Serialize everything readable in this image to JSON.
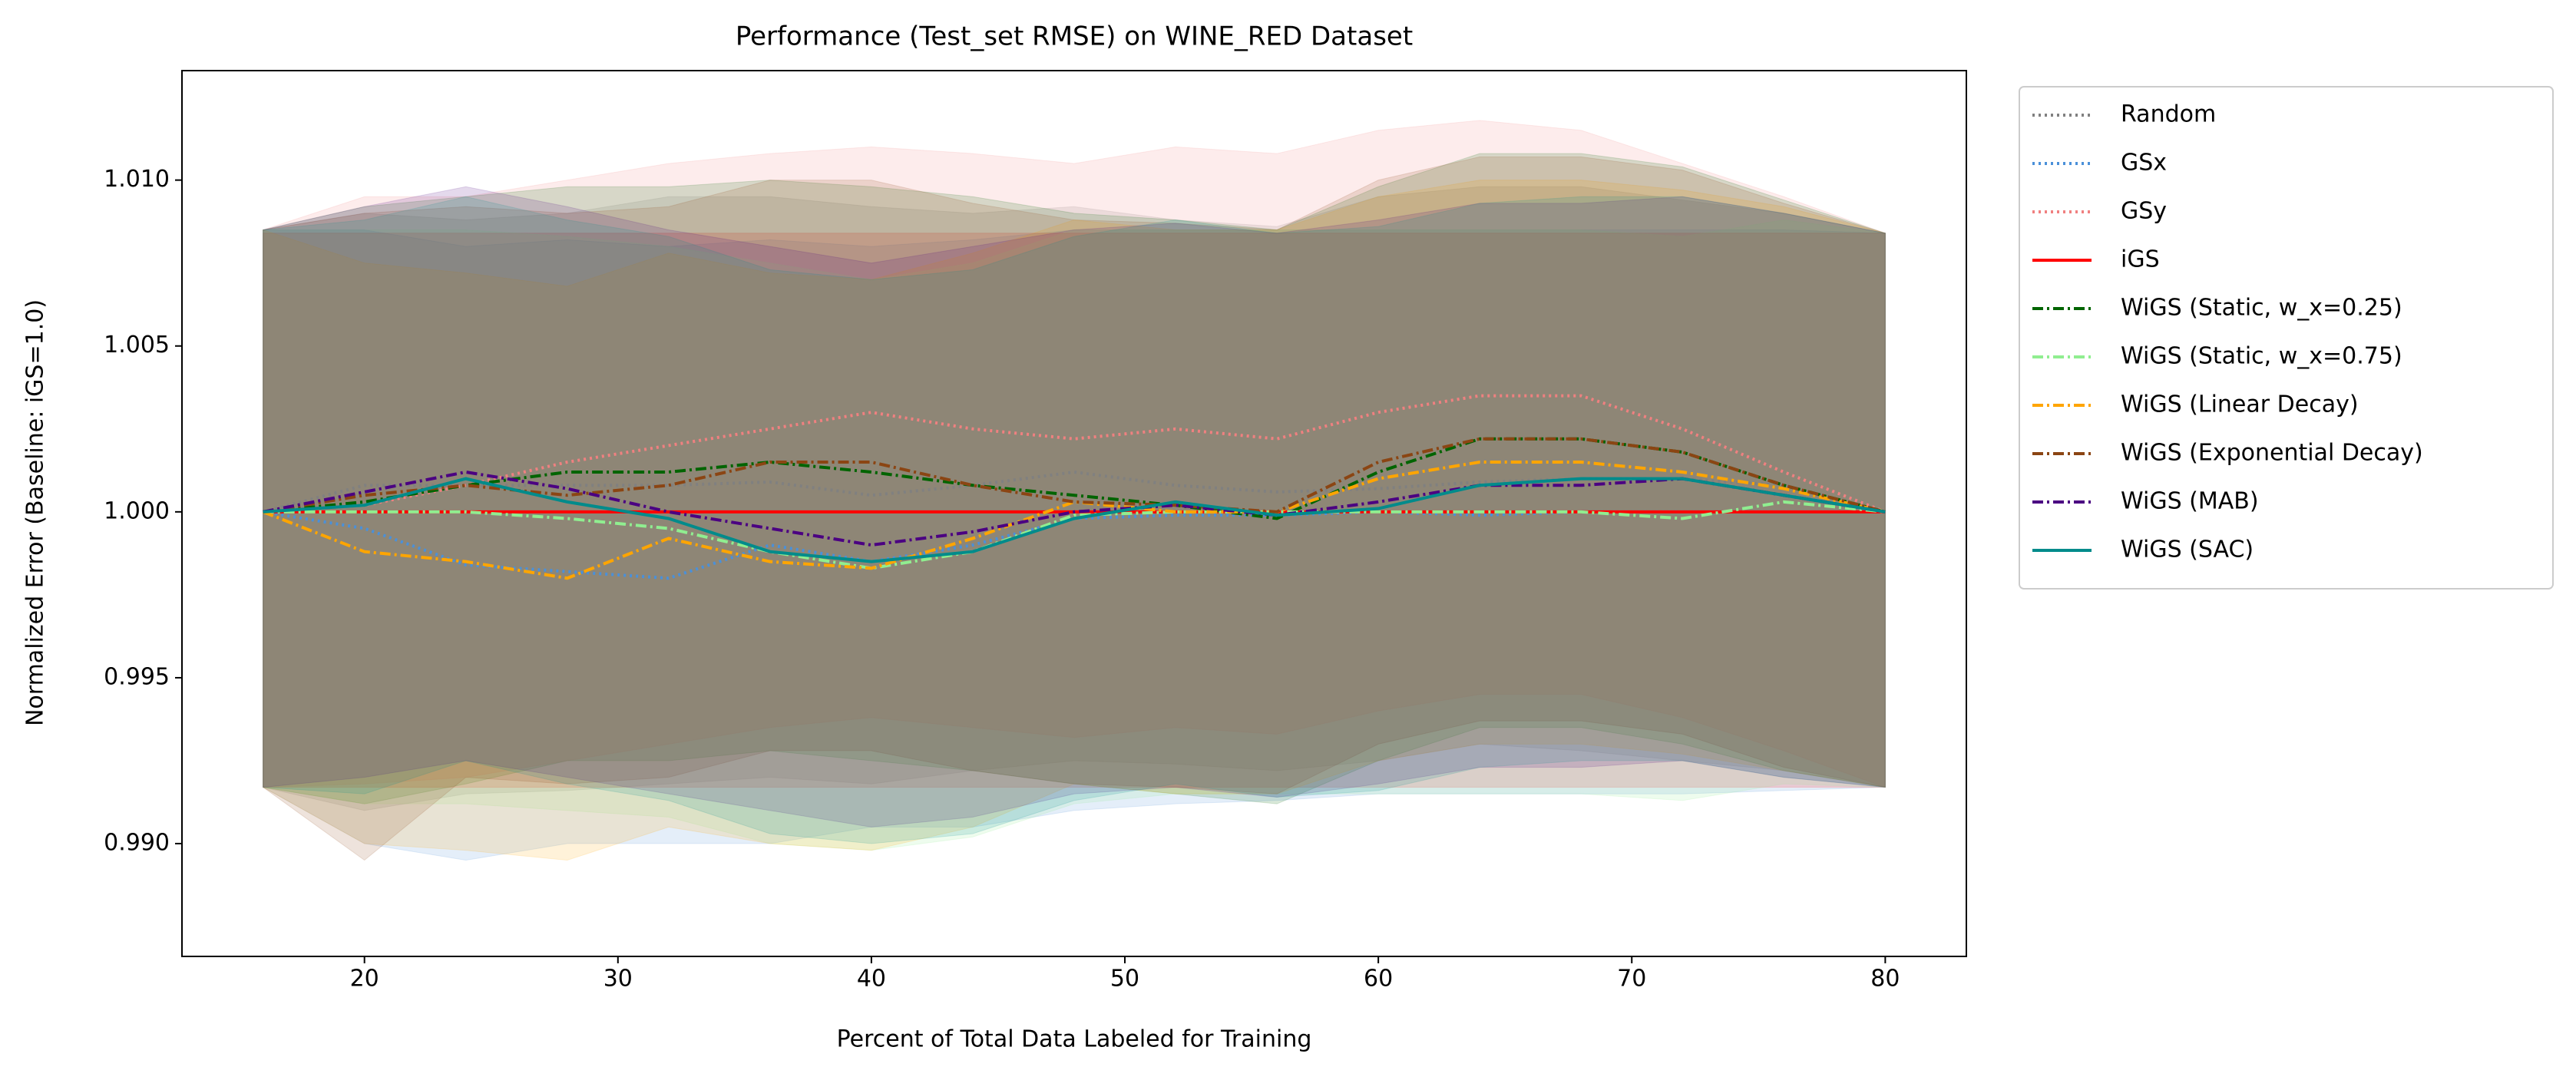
{
  "chart_data": {
    "type": "line",
    "title": "Performance (Test_set RMSE) on WINE_RED Dataset",
    "x_label": "Percent of Total Data Labeled for Training",
    "y_label": "Normalized Error (Baseline: iGS=1.0)",
    "x": [
      16,
      20,
      24,
      28,
      32,
      36,
      40,
      44,
      48,
      52,
      56,
      60,
      64,
      68,
      72,
      76,
      80
    ],
    "xlim": [
      12.8,
      83.2
    ],
    "xticks": [
      20,
      30,
      40,
      50,
      60,
      70,
      80
    ],
    "ylim": [
      0.9866,
      1.0133
    ],
    "yticks": [
      {
        "value": 0.99,
        "label": "0.990"
      },
      {
        "value": 0.995,
        "label": "0.995"
      },
      {
        "value": 1.0,
        "label": "1.000"
      },
      {
        "value": 1.005,
        "label": "1.005"
      },
      {
        "value": 1.01,
        "label": "1.010"
      }
    ],
    "grid": false,
    "legend": "outside upper right",
    "series": [
      {
        "name": "Random",
        "color": "#808080",
        "style": "dotted",
        "values": [
          1.0,
          1.0008,
          1.0008,
          1.0008,
          1.0008,
          1.0009,
          1.0005,
          1.0008,
          1.0012,
          1.0008,
          1.0006,
          1.0007,
          1.0009,
          1.001,
          1.001,
          1.0008,
          1.0
        ],
        "lower": [
          0.9917,
          0.991,
          0.9915,
          0.9916,
          0.9918,
          0.992,
          0.9918,
          0.9922,
          0.9925,
          0.9924,
          0.9922,
          0.9925,
          0.993,
          0.9928,
          0.9925,
          0.9922,
          0.9917
        ],
        "upper": [
          1.0085,
          1.009,
          1.0088,
          1.009,
          1.0095,
          1.0095,
          1.0092,
          1.009,
          1.0092,
          1.0088,
          1.0086,
          1.0095,
          1.0098,
          1.0098,
          1.0094,
          1.009,
          1.0084
        ]
      },
      {
        "name": "GSx",
        "color": "#4a90d9",
        "style": "dotted",
        "values": [
          1.0,
          0.9995,
          0.9984,
          0.9982,
          0.998,
          0.999,
          0.9985,
          0.999,
          0.9998,
          0.9999,
          0.9999,
          1.0,
          0.9999,
          1.0,
          1.0,
          1.0,
          1.0
        ],
        "lower": [
          0.9917,
          0.99,
          0.9895,
          0.99,
          0.99,
          0.99,
          0.9905,
          0.9905,
          0.991,
          0.9912,
          0.9913,
          0.9915,
          0.9915,
          0.9915,
          0.9915,
          0.9916,
          0.9917
        ],
        "upper": [
          1.0085,
          1.0085,
          1.008,
          1.0082,
          1.008,
          1.0082,
          1.008,
          1.0082,
          1.0085,
          1.0085,
          1.0085,
          1.0085,
          1.0085,
          1.0085,
          1.0085,
          1.0085,
          1.0084
        ]
      },
      {
        "name": "GSy",
        "color": "#f08080",
        "style": "dotted",
        "values": [
          1.0,
          1.0002,
          1.0008,
          1.0015,
          1.002,
          1.0025,
          1.003,
          1.0025,
          1.0022,
          1.0025,
          1.0022,
          1.003,
          1.0035,
          1.0035,
          1.0025,
          1.0012,
          1.0
        ],
        "lower": [
          0.9917,
          0.9918,
          0.992,
          0.9925,
          0.993,
          0.9935,
          0.9938,
          0.9935,
          0.9932,
          0.9935,
          0.9933,
          0.994,
          0.9945,
          0.9945,
          0.9938,
          0.9928,
          0.9917
        ],
        "upper": [
          1.0085,
          1.0095,
          1.0095,
          1.01,
          1.0105,
          1.0108,
          1.011,
          1.0108,
          1.0105,
          1.011,
          1.0108,
          1.0115,
          1.0118,
          1.0115,
          1.0105,
          1.0095,
          1.0084
        ]
      },
      {
        "name": "iGS",
        "color": "#ff0000",
        "style": "solid",
        "values": [
          1.0,
          1.0,
          1.0,
          1.0,
          1.0,
          1.0,
          1.0,
          1.0,
          1.0,
          1.0,
          1.0,
          1.0,
          1.0,
          1.0,
          1.0,
          1.0,
          1.0
        ],
        "lower": [
          0.9917,
          0.9917,
          0.9917,
          0.9917,
          0.9917,
          0.9917,
          0.9917,
          0.9917,
          0.9917,
          0.9917,
          0.9917,
          0.9917,
          0.9917,
          0.9917,
          0.9917,
          0.9917,
          0.9917
        ],
        "upper": [
          1.0084,
          1.0084,
          1.0084,
          1.0084,
          1.0084,
          1.0084,
          1.0084,
          1.0084,
          1.0084,
          1.0084,
          1.0084,
          1.0084,
          1.0084,
          1.0084,
          1.0084,
          1.0084,
          1.0084
        ]
      },
      {
        "name": "WiGS (Static, w_x=0.25)",
        "color": "#006400",
        "style": "dashdot",
        "values": [
          1.0,
          1.0003,
          1.0008,
          1.0012,
          1.0012,
          1.0015,
          1.0012,
          1.0008,
          1.0005,
          1.0002,
          0.9998,
          1.0012,
          1.0022,
          1.0022,
          1.0018,
          1.0008,
          1.0
        ],
        "lower": [
          0.9917,
          0.9912,
          0.9918,
          0.9925,
          0.9925,
          0.9928,
          0.9925,
          0.9922,
          0.9918,
          0.9915,
          0.9912,
          0.9925,
          0.9935,
          0.9935,
          0.993,
          0.9922,
          0.9917
        ],
        "upper": [
          1.0085,
          1.0092,
          1.0095,
          1.0098,
          1.0098,
          1.01,
          1.0098,
          1.0095,
          1.009,
          1.0088,
          1.0085,
          1.0098,
          1.0108,
          1.0108,
          1.0104,
          1.0094,
          1.0084
        ]
      },
      {
        "name": "WiGS (Static, w_x=0.75)",
        "color": "#90ee90",
        "style": "dashdot",
        "values": [
          1.0,
          1.0,
          1.0,
          0.9998,
          0.9995,
          0.9988,
          0.9983,
          0.9988,
          0.9999,
          1.0,
          1.0,
          1.0,
          1.0,
          1.0,
          0.9998,
          1.0003,
          1.0
        ],
        "lower": [
          0.9917,
          0.9912,
          0.9912,
          0.991,
          0.9908,
          0.99,
          0.9898,
          0.9902,
          0.9912,
          0.9915,
          0.9915,
          0.9915,
          0.9915,
          0.9915,
          0.9913,
          0.9918,
          0.9917
        ],
        "upper": [
          1.0085,
          1.0085,
          1.0085,
          1.0083,
          1.008,
          1.0075,
          1.007,
          1.0075,
          1.0085,
          1.0085,
          1.0085,
          1.0085,
          1.0085,
          1.0085,
          1.0083,
          1.0088,
          1.0084
        ]
      },
      {
        "name": "WiGS (Linear Decay)",
        "color": "#ffa500",
        "style": "dashdot",
        "values": [
          1.0,
          0.9988,
          0.9985,
          0.998,
          0.9992,
          0.9985,
          0.9983,
          0.9992,
          1.0003,
          1.0,
          1.0,
          1.001,
          1.0015,
          1.0015,
          1.0012,
          1.0007,
          1.0
        ],
        "lower": [
          0.9917,
          0.99,
          0.9898,
          0.9895,
          0.9905,
          0.99,
          0.9898,
          0.9905,
          0.9918,
          0.9915,
          0.9915,
          0.9925,
          0.993,
          0.993,
          0.9927,
          0.9922,
          0.9917
        ],
        "upper": [
          1.0085,
          1.0075,
          1.0072,
          1.0068,
          1.0078,
          1.0072,
          1.007,
          1.0078,
          1.0088,
          1.0085,
          1.0085,
          1.0095,
          1.01,
          1.01,
          1.0097,
          1.0092,
          1.0084
        ]
      },
      {
        "name": "WiGS (Exponential Decay)",
        "color": "#8b4513",
        "style": "dashdot",
        "values": [
          1.0,
          1.0005,
          1.0008,
          1.0005,
          1.0008,
          1.0015,
          1.0015,
          1.0008,
          1.0003,
          1.0002,
          1.0,
          1.0015,
          1.0022,
          1.0022,
          1.0018,
          1.0008,
          1.0
        ],
        "lower": [
          0.9917,
          0.9895,
          0.992,
          0.9918,
          0.992,
          0.9928,
          0.9928,
          0.9922,
          0.9918,
          0.9917,
          0.9915,
          0.993,
          0.9937,
          0.9937,
          0.9933,
          0.9923,
          0.9917
        ],
        "upper": [
          1.0085,
          1.009,
          1.0092,
          1.009,
          1.0092,
          1.01,
          1.01,
          1.0093,
          1.0088,
          1.0087,
          1.0085,
          1.01,
          1.0107,
          1.0107,
          1.0103,
          1.0093,
          1.0084
        ]
      },
      {
        "name": "WiGS (MAB)",
        "color": "#4b0082",
        "style": "dashdot",
        "values": [
          1.0,
          1.0006,
          1.0012,
          1.0007,
          1.0,
          0.9995,
          0.999,
          0.9994,
          1.0,
          1.0002,
          0.9999,
          1.0003,
          1.0008,
          1.0008,
          1.001,
          1.0005,
          1.0
        ],
        "lower": [
          0.9917,
          0.992,
          0.9925,
          0.992,
          0.9915,
          0.991,
          0.9905,
          0.9908,
          0.9915,
          0.9917,
          0.9914,
          0.9918,
          0.9923,
          0.9923,
          0.9925,
          0.992,
          0.9917
        ],
        "upper": [
          1.0085,
          1.0092,
          1.0098,
          1.0092,
          1.0085,
          1.008,
          1.0075,
          1.008,
          1.0085,
          1.0087,
          1.0084,
          1.0088,
          1.0093,
          1.0093,
          1.0095,
          1.009,
          1.0084
        ]
      },
      {
        "name": "WiGS (SAC)",
        "color": "#008b8b",
        "style": "solid",
        "values": [
          1.0,
          1.0002,
          1.001,
          1.0003,
          0.9998,
          0.9988,
          0.9985,
          0.9988,
          0.9998,
          1.0003,
          0.9999,
          1.0001,
          1.0008,
          1.001,
          1.001,
          1.0005,
          1.0
        ],
        "lower": [
          0.9917,
          0.9915,
          0.9925,
          0.9918,
          0.9913,
          0.9903,
          0.99,
          0.9903,
          0.9913,
          0.9918,
          0.9914,
          0.9916,
          0.9923,
          0.9925,
          0.9925,
          0.992,
          0.9917
        ],
        "upper": [
          1.0085,
          1.0088,
          1.0095,
          1.0088,
          1.0083,
          1.0073,
          1.007,
          1.0073,
          1.0083,
          1.0088,
          1.0084,
          1.0086,
          1.0093,
          1.0095,
          1.0095,
          1.009,
          1.0084
        ]
      }
    ]
  }
}
